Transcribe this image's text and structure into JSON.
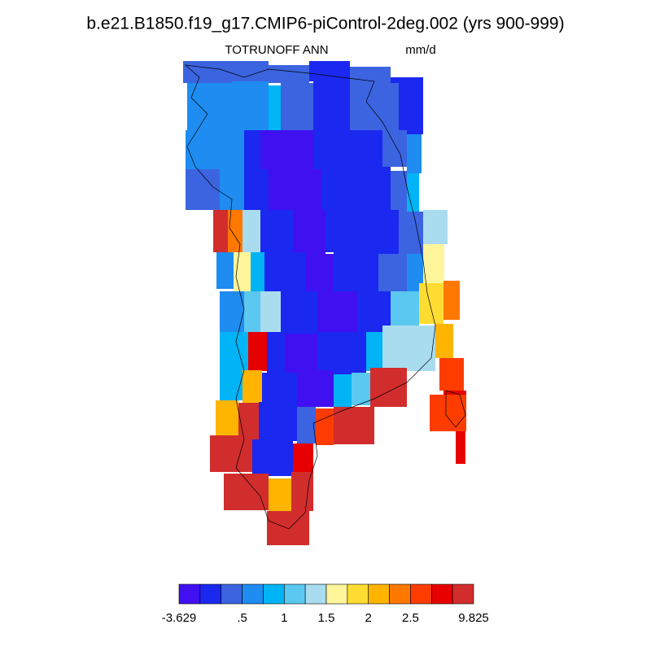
{
  "title": "b.e21.B1850.f19_g17.CMIP6-piControl-2deg.002 (yrs 900-999)",
  "left_string": "TOTRUNOFF ANN",
  "right_string": "mm/d",
  "colorbar": {
    "colors": [
      "#4010f0",
      "#1a28f0",
      "#3c64e0",
      "#1e8cf0",
      "#00b4f5",
      "#5ac8f0",
      "#aadcf0",
      "#fff59b",
      "#ffdc32",
      "#ffb400",
      "#ff7800",
      "#ff3c00",
      "#e60000",
      "#d22d2d"
    ],
    "ticks": [
      -3.629,
      {
        "value": 0.5,
        "label": ".5"
      },
      1,
      1.5,
      2,
      2.5,
      9.825
    ]
  }
}
